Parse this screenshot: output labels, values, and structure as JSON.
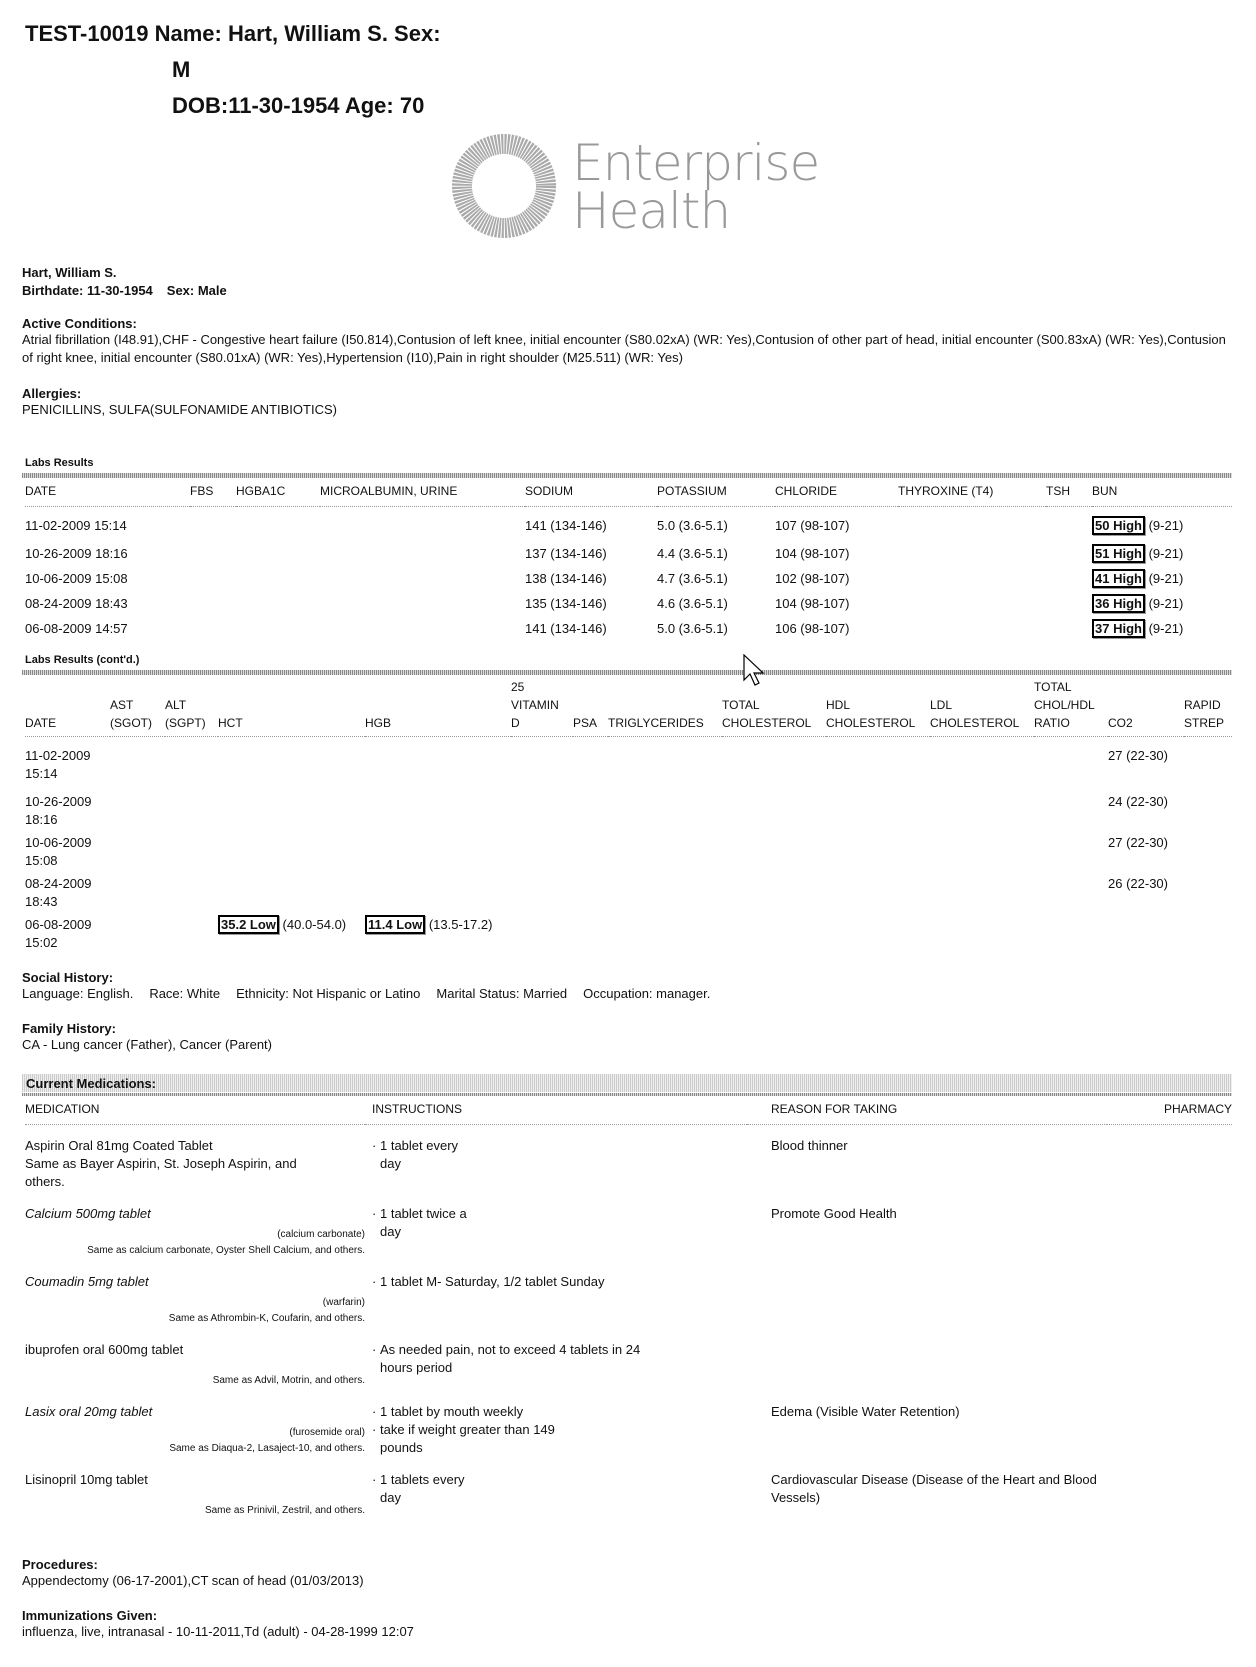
{
  "header": {
    "line1": "TEST-10019 Name: Hart, William S. Sex:",
    "line2": "M",
    "line3": "DOB:11-30-1954 Age: 70"
  },
  "logo": {
    "line1": "Enterprise",
    "line2": "Health",
    "color": "#999999"
  },
  "patient": {
    "name": "Hart, William S.",
    "birthdate": "Birthdate: 11-30-1954",
    "sex": "Sex: Male"
  },
  "active_conditions": {
    "label": "Active Conditions:",
    "text": "Atrial fibrillation (I48.91),CHF - Congestive heart failure (I50.814),Contusion of left knee, initial encounter (S80.02xA) (WR: Yes),Contusion of other part of head, initial encounter (S00.83xA) (WR: Yes),Contusion of right knee, initial encounter (S80.01xA) (WR: Yes),Hypertension (I10),Pain in right shoulder (M25.511) (WR: Yes)"
  },
  "allergies": {
    "label": "Allergies:",
    "text": "PENICILLINS, SULFA(SULFONAMIDE ANTIBIOTICS)"
  },
  "labs1": {
    "title": "Labs Results",
    "columns": [
      "DATE",
      "FBS",
      "HGBA1C",
      "MICROALBUMIN, URINE",
      "SODIUM",
      "POTASSIUM",
      "CHLORIDE",
      "THYROXINE (T4)",
      "TSH",
      "BUN"
    ],
    "rows": [
      [
        "11-02-2009 15:14",
        "",
        "",
        "",
        "141 (134-146)",
        "5.0 (3.6-5.1)",
        "107 (98-107)",
        "",
        "",
        {
          "flag": "50 High",
          "range": "(9-21)"
        }
      ],
      [
        "10-26-2009 18:16",
        "",
        "",
        "",
        "137 (134-146)",
        "4.4 (3.6-5.1)",
        "104 (98-107)",
        "",
        "",
        {
          "flag": "51 High",
          "range": "(9-21)"
        }
      ],
      [
        "10-06-2009 15:08",
        "",
        "",
        "",
        "138 (134-146)",
        "4.7 (3.6-5.1)",
        "102 (98-107)",
        "",
        "",
        {
          "flag": "41 High",
          "range": "(9-21)"
        }
      ],
      [
        "08-24-2009 18:43",
        "",
        "",
        "",
        "135 (134-146)",
        "4.6 (3.6-5.1)",
        "104 (98-107)",
        "",
        "",
        {
          "flag": "36 High",
          "range": "(9-21)"
        }
      ],
      [
        "06-08-2009 14:57",
        "",
        "",
        "",
        "141 (134-146)",
        "5.0 (3.6-5.1)",
        "106 (98-107)",
        "",
        "",
        {
          "flag": "37 High",
          "range": "(9-21)"
        }
      ]
    ]
  },
  "labs2": {
    "title": "Labs Results (cont'd.)",
    "columns": [
      "DATE",
      "AST (SGOT)",
      "ALT (SGPT)",
      "HCT",
      "HGB",
      "25 VITAMIN D",
      "PSA",
      "TRIGLYCERIDES",
      "TOTAL CHOLESTEROL",
      "HDL CHOLESTEROL",
      "LDL CHOLESTEROL",
      "TOTAL CHOL/HDL RATIO",
      "CO2",
      "RAPID STREP"
    ],
    "rows": [
      [
        "11-02-2009 15:14",
        "",
        "",
        "",
        "",
        "",
        "",
        "",
        "",
        "",
        "",
        "",
        "27 (22-30)",
        ""
      ],
      [
        "10-26-2009 18:16",
        "",
        "",
        "",
        "",
        "",
        "",
        "",
        "",
        "",
        "",
        "",
        "24 (22-30)",
        ""
      ],
      [
        "10-06-2009 15:08",
        "",
        "",
        "",
        "",
        "",
        "",
        "",
        "",
        "",
        "",
        "",
        "27 (22-30)",
        ""
      ],
      [
        "08-24-2009 18:43",
        "",
        "",
        "",
        "",
        "",
        "",
        "",
        "",
        "",
        "",
        "",
        "26 (22-30)",
        ""
      ],
      [
        "06-08-2009 15:02",
        "",
        "",
        {
          "flag": "35.2 Low",
          "range": "(40.0-54.0)"
        },
        {
          "flag": "11.4 Low",
          "range": "(13.5-17.2)"
        },
        "",
        "",
        "",
        "",
        "",
        "",
        "",
        "",
        ""
      ]
    ]
  },
  "social_history": {
    "label": "Social History:",
    "items": [
      "Language: English.",
      "Race: White",
      "Ethnicity: Not Hispanic or Latino",
      "Marital Status: Married",
      "Occupation: manager."
    ]
  },
  "family_history": {
    "label": "Family History:",
    "text": "CA - Lung cancer (Father), Cancer (Parent)"
  },
  "medications": {
    "title": "Current Medications:",
    "columns": {
      "medication": "MEDICATION",
      "instructions": "INSTRUCTIONS",
      "reason": "REASON FOR TAKING",
      "pharmacy": "PHARMACY"
    },
    "rows": [
      {
        "name": "Aspirin Oral 81mg Coated Tablet",
        "italic": false,
        "generic": "",
        "same_as": "Same as Bayer Aspirin, St. Joseph Aspirin, and others.",
        "same_as_inline": true,
        "instructions": [
          "1 tablet every day"
        ],
        "reason": "Blood thinner"
      },
      {
        "name": "Calcium 500mg tablet",
        "italic": true,
        "generic": "(calcium carbonate)",
        "same_as": "Same as calcium carbonate, Oyster Shell Calcium, and others.",
        "same_as_inline": false,
        "instructions": [
          "1 tablet twice a day"
        ],
        "reason": "Promote Good Health"
      },
      {
        "name": "Coumadin 5mg tablet",
        "italic": true,
        "generic": "(warfarin)",
        "same_as": "Same as Athrombin-K, Coufarin, and others.",
        "same_as_inline": false,
        "instructions": [
          "1 tablet M- Saturday, 1/2 tablet Sunday"
        ],
        "reason": ""
      },
      {
        "name": "ibuprofen oral 600mg tablet",
        "italic": false,
        "generic": "",
        "same_as": "Same as Advil, Motrin, and others.",
        "same_as_inline": false,
        "instructions": [
          "As needed pain, not to exceed 4 tablets in 24 hours period"
        ],
        "reason": ""
      },
      {
        "name": "Lasix oral 20mg tablet",
        "italic": true,
        "generic": "(furosemide oral)",
        "same_as": "Same as Diaqua-2, Lasaject-10, and others.",
        "same_as_inline": false,
        "instructions": [
          "1 tablet by mouth weekly",
          "take if weight greater than 149 pounds"
        ],
        "reason": "Edema (Visible Water Retention)"
      },
      {
        "name": "Lisinopril 10mg tablet",
        "italic": false,
        "generic": "",
        "same_as": "Same as Prinivil, Zestril, and others.",
        "same_as_inline": false,
        "instructions": [
          "1 tablets every day"
        ],
        "reason": "Cardiovascular Disease (Disease of the Heart and Blood Vessels)"
      }
    ]
  },
  "procedures": {
    "label": "Procedures:",
    "text": "Appendectomy (06-17-2001),CT scan of head (01/03/2013)"
  },
  "immunizations": {
    "label": "Immunizations Given:",
    "text": "influenza, live, intranasal - 10-11-2011,Td (adult) - 04-28-1999 12:07"
  }
}
